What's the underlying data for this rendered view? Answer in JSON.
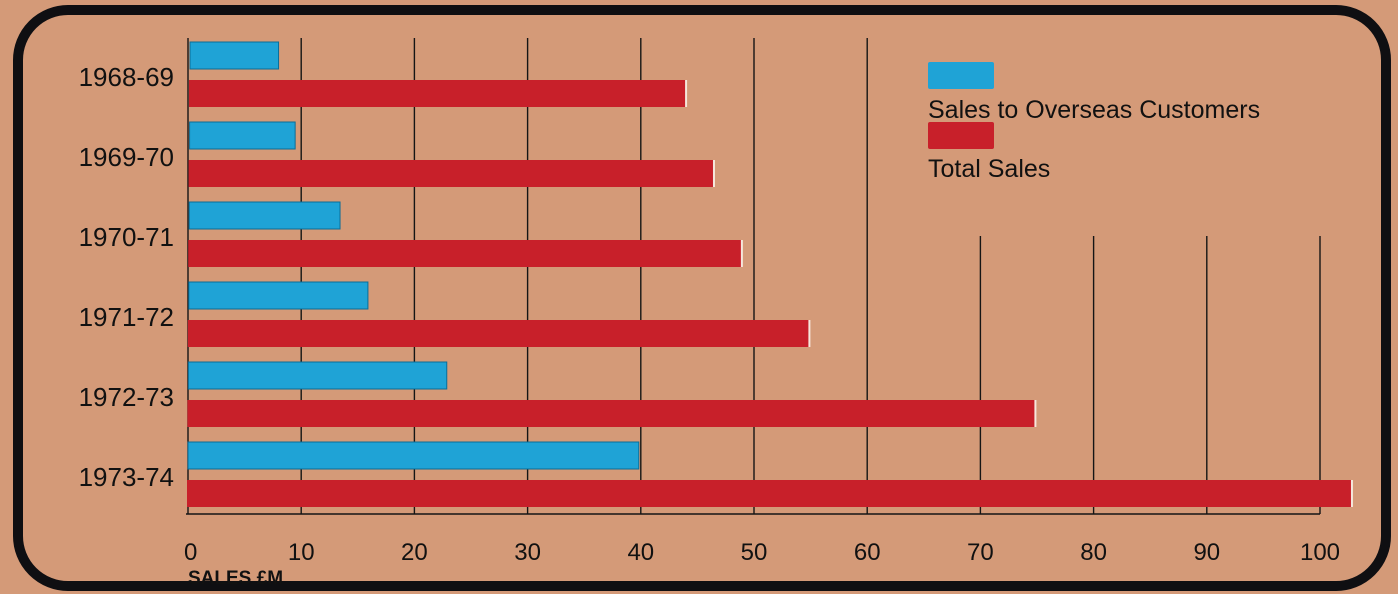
{
  "chart_data": {
    "type": "bar",
    "orientation": "horizontal",
    "categories": [
      "1968-69",
      "1969-70",
      "1970-71",
      "1971-72",
      "1972-73",
      "1973-74"
    ],
    "series": [
      {
        "name": "Sales to Overseas Customers",
        "values": [
          8,
          9.5,
          13.5,
          16,
          23,
          40
        ],
        "color": "#1fa3d6"
      },
      {
        "name": "Total Sales",
        "values": [
          44,
          46.5,
          49,
          55,
          75,
          103
        ],
        "color": "#c8202a"
      }
    ],
    "xlabel": "SALES £M",
    "ylabel": "",
    "xlim": [
      0,
      100
    ],
    "xticks": [
      0,
      10,
      20,
      30,
      40,
      50,
      60,
      70,
      80,
      90,
      100
    ],
    "grid": "vertical",
    "legend_position": "top-right"
  }
}
